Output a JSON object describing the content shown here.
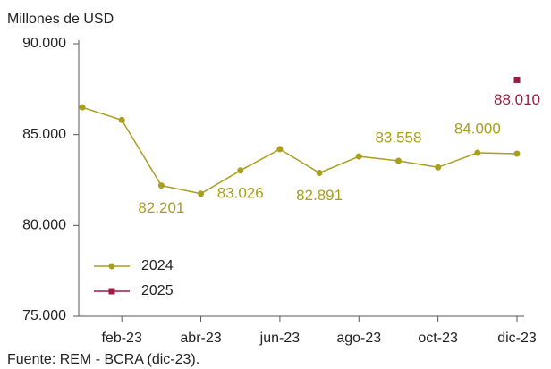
{
  "chart_data": {
    "type": "line",
    "title": "Millones de USD",
    "source": "Fuente: REM - BCRA (dic-23).",
    "categories": [
      null,
      "feb-23",
      null,
      "abr-23",
      null,
      "jun-23",
      null,
      "ago-23",
      null,
      "oct-23",
      null,
      "dic-23"
    ],
    "series": [
      {
        "name": "2024",
        "color": "#a89f1c",
        "marker": "circle",
        "values": [
          86500,
          85800,
          82201,
          81750,
          83026,
          84200,
          82891,
          83800,
          83558,
          83200,
          84000,
          83950
        ],
        "value_labels": [
          null,
          null,
          "82.201",
          null,
          "83.026",
          null,
          "82.891",
          null,
          "83.558",
          null,
          "84.000",
          null
        ]
      },
      {
        "name": "2025",
        "color": "#9c1c42",
        "marker": "square",
        "values": [
          null,
          null,
          null,
          null,
          null,
          null,
          null,
          null,
          null,
          null,
          null,
          88010
        ],
        "value_labels": [
          null,
          null,
          null,
          null,
          null,
          null,
          null,
          null,
          null,
          null,
          null,
          "88.010"
        ]
      }
    ],
    "ylim": [
      75000,
      90000
    ],
    "yticks": [
      {
        "value": 75000,
        "label": "75.000"
      },
      {
        "value": 80000,
        "label": "80.000"
      },
      {
        "value": 85000,
        "label": "85.000"
      },
      {
        "value": 90000,
        "label": "90.000"
      }
    ],
    "grid": false,
    "legend": "lower left"
  }
}
